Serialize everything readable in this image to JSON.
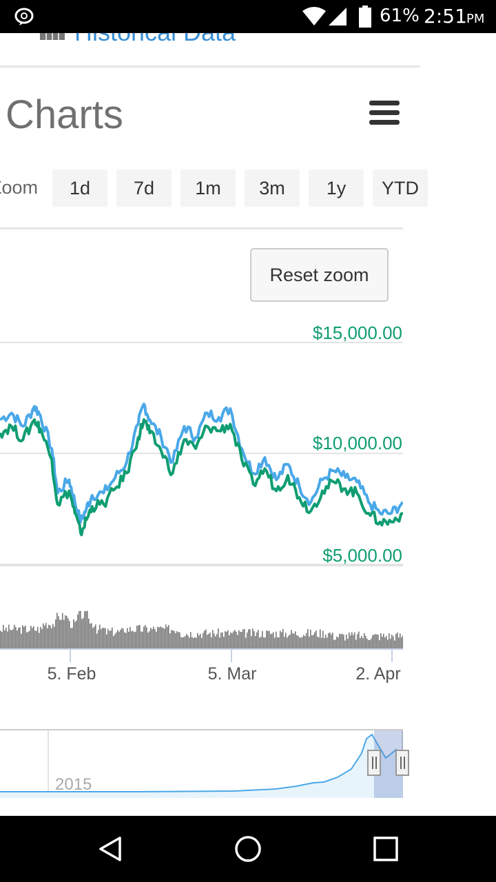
{
  "status_bar": {
    "battery_percent": "61%",
    "time": "2:51",
    "ampm": "PM"
  },
  "page": {
    "top_link": "Historical Data",
    "section_title": "Charts",
    "menu_icon": "hamburger-icon",
    "zoom_label": "Zoom",
    "zoom_buttons": [
      "1d",
      "7d",
      "1m",
      "3m",
      "1y",
      "YTD"
    ],
    "reset_zoom": "Reset zoom"
  },
  "colors": {
    "accent_blue": "#4aa8e8",
    "accent_green": "#0f9d72",
    "volume_gray": "#777777"
  },
  "chart_data": {
    "type": "line",
    "y_tick_labels": [
      "$15,000.00",
      "$10,000.00",
      "$5,000.00"
    ],
    "y_ticks": [
      15000,
      10000,
      5000
    ],
    "ylim": [
      4000,
      15000
    ],
    "x_tick_labels": [
      "5. Feb",
      "5. Mar",
      "2. Apr"
    ],
    "x_day_ticks": [
      0,
      28,
      56
    ],
    "x_day_range": [
      -12,
      58
    ],
    "series": [
      {
        "color": "#4aa8e8",
        "x": [
          -12,
          -10,
          -8,
          -6,
          -5,
          -3,
          -2,
          0,
          1,
          2,
          3,
          4,
          6,
          8,
          10,
          12,
          13,
          14,
          16,
          18,
          20,
          22,
          24,
          26,
          28,
          30,
          32,
          34,
          36,
          38,
          40,
          42,
          44,
          46,
          48,
          50,
          52,
          54,
          56,
          58
        ],
        "y": [
          11500,
          11800,
          11200,
          12100,
          11700,
          10200,
          8200,
          8800,
          7800,
          6900,
          7500,
          8100,
          8200,
          8900,
          9600,
          11300,
          12200,
          11500,
          10700,
          9600,
          11200,
          10700,
          11800,
          11600,
          12000,
          10200,
          9100,
          9800,
          8800,
          9500,
          8500,
          7800,
          8800,
          9200,
          8900,
          8700,
          7800,
          7300,
          7300,
          7800
        ]
      },
      {
        "color": "#0f9d72",
        "x": [
          -12,
          -10,
          -8,
          -6,
          -5,
          -3,
          -2,
          0,
          1,
          2,
          3,
          4,
          6,
          8,
          10,
          12,
          13,
          14,
          16,
          18,
          20,
          22,
          24,
          26,
          28,
          30,
          32,
          34,
          36,
          38,
          40,
          42,
          44,
          46,
          48,
          50,
          52,
          54,
          56,
          58
        ],
        "y": [
          10900,
          11200,
          10600,
          11500,
          11100,
          9700,
          7700,
          8300,
          7300,
          6400,
          7000,
          7600,
          7700,
          8400,
          9100,
          10700,
          11500,
          10900,
          10100,
          9100,
          10600,
          10200,
          11200,
          11000,
          11300,
          9700,
          8600,
          9300,
          8300,
          9000,
          8000,
          7400,
          8300,
          8700,
          8400,
          8200,
          7300,
          6900,
          6900,
          7300
        ]
      }
    ],
    "navigator": {
      "label": "2015",
      "series_color": "#4aa8e8"
    }
  }
}
